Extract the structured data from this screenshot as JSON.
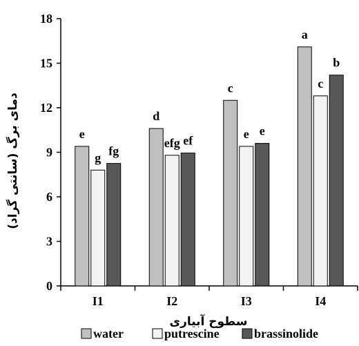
{
  "chart_data": {
    "type": "bar",
    "categories": [
      "I1",
      "I2",
      "I3",
      "I4"
    ],
    "series": [
      {
        "name": "water",
        "color": "#c0c0c0",
        "values": [
          9.4,
          10.6,
          12.5,
          16.1
        ],
        "labels": [
          "e",
          "d",
          "c",
          "a"
        ]
      },
      {
        "name": "putrescine",
        "color": "#f2f2f2",
        "values": [
          7.8,
          8.8,
          9.4,
          12.8
        ],
        "labels": [
          "g",
          "efg",
          "e",
          "c"
        ]
      },
      {
        "name": "brassinolide",
        "color": "#595959",
        "values": [
          8.25,
          8.95,
          9.6,
          14.2
        ],
        "labels": [
          "fg",
          "ef",
          "e",
          "b"
        ]
      }
    ],
    "xlabel": "سطوح آبیاری",
    "ylabel": "دمای برگ (سانتی گراد)",
    "ylim": [
      0,
      18
    ],
    "yticks": [
      0,
      3,
      6,
      9,
      12,
      15,
      18
    ],
    "grid": false,
    "legend_position": "bottom"
  }
}
